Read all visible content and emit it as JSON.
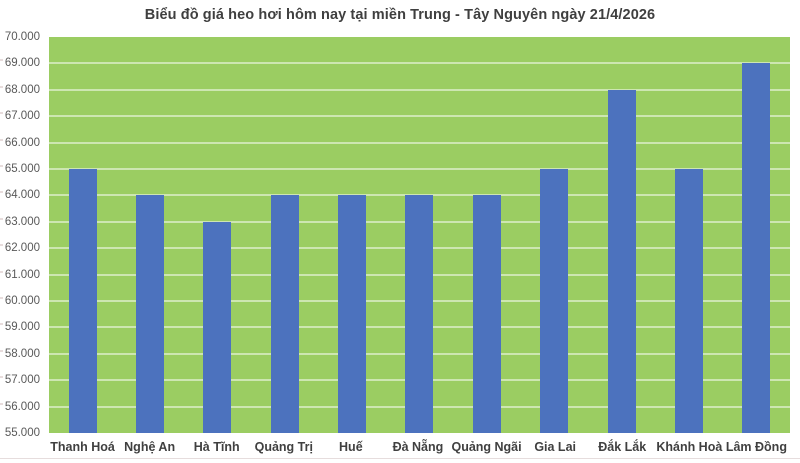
{
  "title": "Biểu đồ giá heo hơi hôm nay tại miền Trung - Tây Nguyên ngày 21/4/2026",
  "colors": {
    "plot_background": "#9bcd62",
    "bar": "#4c72be",
    "gridline": "rgba(255,255,255,0.5)",
    "title_text": "#3f3f3f",
    "ytick_text": "#595959",
    "category_text": "#404040"
  },
  "chart_data": {
    "type": "bar",
    "title": "Biểu đồ giá heo hơi hôm nay tại miền Trung - Tây Nguyên ngày 21/4/2026",
    "categories": [
      "Thanh Hoá",
      "Nghệ An",
      "Hà Tĩnh",
      "Quảng Trị",
      "Huế",
      "Đà Nẵng",
      "Quảng Ngãi",
      "Gia Lai",
      "Đắk Lắk",
      "Khánh Hoà",
      "Lâm Đồng"
    ],
    "values": [
      65000,
      64000,
      63000,
      64000,
      64000,
      64000,
      64000,
      65000,
      68000,
      65000,
      69000
    ],
    "xlabel": "",
    "ylabel": "",
    "ylim": [
      55000,
      70000
    ],
    "ytick_step": 1000,
    "ytick_labels": [
      "70.000",
      "69.000",
      "68.000",
      "67.000",
      "66.000",
      "65.000",
      "64.000",
      "63.000",
      "62.000",
      "61.000",
      "60.000",
      "59.000",
      "58.000",
      "57.000",
      "56.000",
      "55.000"
    ],
    "grid": true,
    "legend": false,
    "series_color": "#4c72be",
    "plot_background": "#9bcd62"
  }
}
